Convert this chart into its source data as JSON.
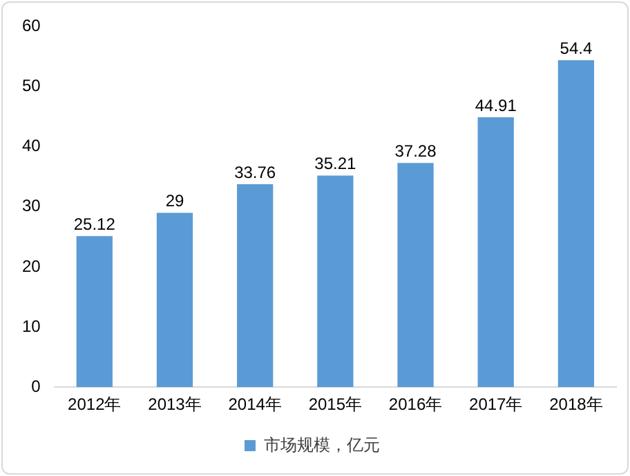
{
  "chart_data": {
    "type": "bar",
    "categories": [
      "2012年",
      "2013年",
      "2014年",
      "2015年",
      "2016年",
      "2017年",
      "2018年"
    ],
    "series": [
      {
        "name": "市场规模，亿元",
        "color": "#5b9bd5",
        "values": [
          25.12,
          29,
          33.76,
          35.21,
          37.28,
          44.91,
          54.4
        ]
      }
    ],
    "ylim": [
      0,
      60
    ],
    "yticks": [
      0,
      10,
      20,
      30,
      40,
      50,
      60
    ],
    "grid": false,
    "legend": "bottom",
    "data_labels": true
  }
}
